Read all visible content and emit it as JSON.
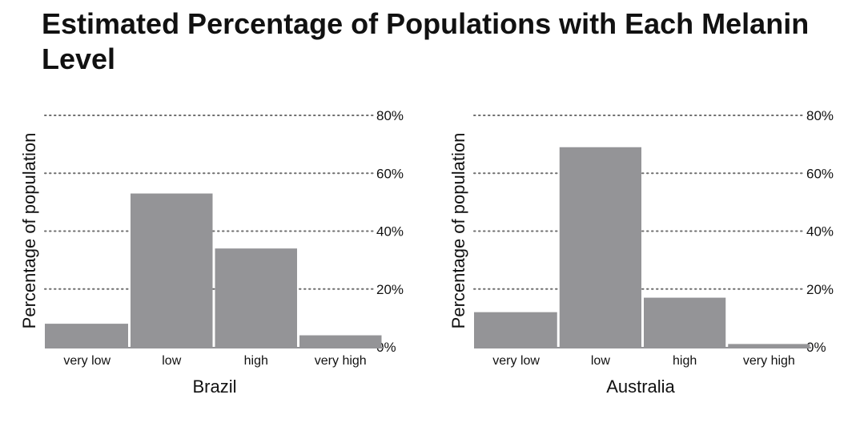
{
  "title": "Estimated Percentage of Populations with Each Melanin Level",
  "colors": {
    "bar": "#949497",
    "grid": "#6e6e6e",
    "text": "#111111"
  },
  "chart_data": [
    {
      "type": "bar",
      "title": "",
      "xlabel": "Brazil",
      "ylabel": "Percentage of population",
      "categories": [
        "very low",
        "low",
        "high",
        "very high"
      ],
      "values": [
        8,
        53,
        34,
        4
      ],
      "ylim": [
        0,
        80
      ],
      "yticks": [
        "0%",
        "20%",
        "40%",
        "60%",
        "80%"
      ],
      "ytick_values": [
        0,
        20,
        40,
        60,
        80
      ],
      "grid": true,
      "y_axis_side": "right"
    },
    {
      "type": "bar",
      "title": "",
      "xlabel": "Australia",
      "ylabel": "Percentage of population",
      "categories": [
        "very low",
        "low",
        "high",
        "very high"
      ],
      "values": [
        12,
        69,
        17,
        1
      ],
      "ylim": [
        0,
        80
      ],
      "yticks": [
        "0%",
        "20%",
        "40%",
        "60%",
        "80%"
      ],
      "ytick_values": [
        0,
        20,
        40,
        60,
        80
      ],
      "grid": true,
      "y_axis_side": "right"
    }
  ]
}
